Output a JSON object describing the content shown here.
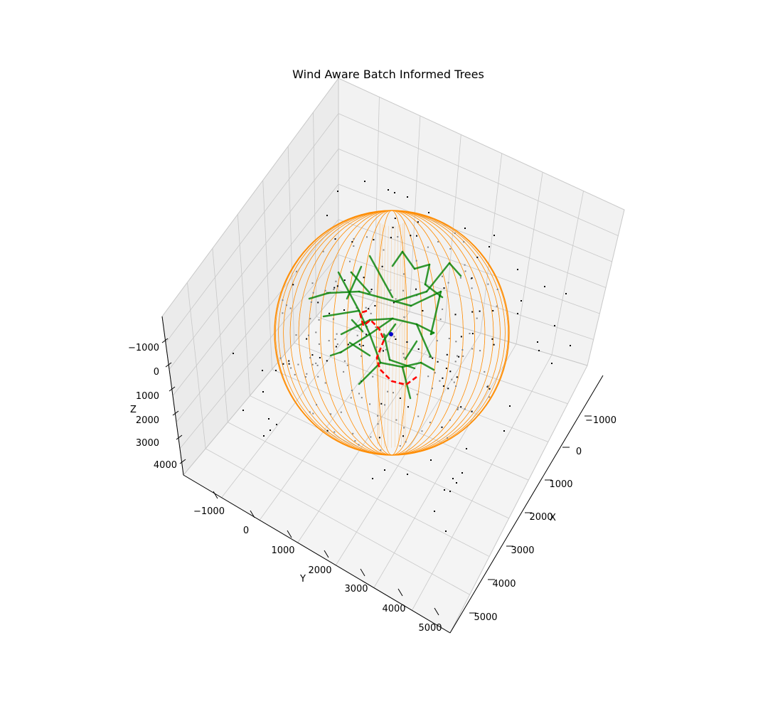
{
  "chart_data": {
    "type": "scatter",
    "title": "Wind Aware Batch Informed Trees",
    "axes": {
      "x": {
        "label": "X",
        "ticks": [
          "−1000",
          "0",
          "1000",
          "2000",
          "3000",
          "4000",
          "5000"
        ]
      },
      "y": {
        "label": "Y",
        "ticks": [
          "−1000",
          "0",
          "1000",
          "2000",
          "3000",
          "4000",
          "5000"
        ]
      },
      "z": {
        "label": "Z",
        "ticks": [
          "−1000",
          "0",
          "1000",
          "2000",
          "3000",
          "4000"
        ]
      }
    },
    "grid": true,
    "colors": {
      "pane": "#f2f2f2",
      "grid": "#c8c8c8",
      "sphere": "#ff8c00",
      "tree": "#008000",
      "path": "#ff0000",
      "samples_outside": "#000000",
      "samples_inside": "#808080"
    }
  }
}
